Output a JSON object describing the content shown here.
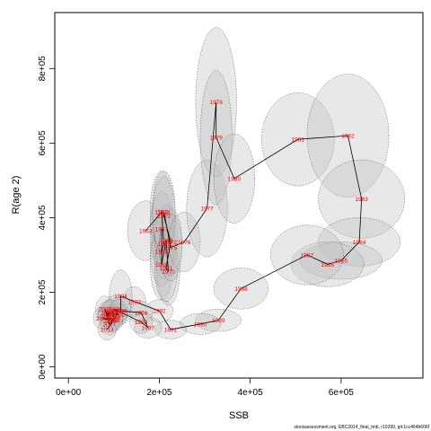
{
  "chart_data": {
    "type": "line",
    "title": "",
    "xlabel": "SSB",
    "ylabel": "R(age 2)",
    "xlim": [
      -30000,
      780000
    ],
    "ylim": [
      -30000,
      950000
    ],
    "x_ticks": [
      0,
      200000,
      400000,
      600000
    ],
    "x_tick_labels": [
      "0e+00",
      "2e+05",
      "4e+05",
      "6e+05"
    ],
    "y_ticks": [
      0,
      200000,
      400000,
      600000,
      800000
    ],
    "y_tick_labels": [
      "0e+00",
      "2e+05",
      "4e+05",
      "6e+05",
      "8e+05"
    ],
    "grid": false,
    "footer": "stockassessment.org, EBC2014_final_tmb, r10299, git:1cc464b606f",
    "points": [
      {
        "year": "1963",
        "x": 170000,
        "y": 365000,
        "ex": 40000,
        "ey": 80000
      },
      {
        "year": "1964",
        "x": 205000,
        "y": 415000,
        "ex": 25000,
        "ey": 110000
      },
      {
        "year": "1965",
        "x": 210000,
        "y": 330000,
        "ex": 25000,
        "ey": 95000
      },
      {
        "year": "1966",
        "x": 205000,
        "y": 310000,
        "ex": 25000,
        "ey": 95000
      },
      {
        "year": "1967",
        "x": 205000,
        "y": 370000,
        "ex": 25000,
        "ey": 100000
      },
      {
        "year": "1968",
        "x": 205000,
        "y": 275000,
        "ex": 25000,
        "ey": 95000
      },
      {
        "year": "1969",
        "x": 215000,
        "y": 340000,
        "ex": 25000,
        "ey": 95000
      },
      {
        "year": "1970",
        "x": 220000,
        "y": 255000,
        "ex": 25000,
        "ey": 90000
      },
      {
        "year": "1971",
        "x": 215000,
        "y": 265000,
        "ex": 25000,
        "ey": 90000
      },
      {
        "year": "1972",
        "x": 225000,
        "y": 335000,
        "ex": 25000,
        "ey": 90000
      },
      {
        "year": "1973",
        "x": 210000,
        "y": 405000,
        "ex": 25000,
        "ey": 105000
      },
      {
        "year": "1974",
        "x": 210000,
        "y": 415000,
        "ex": 25000,
        "ey": 110000
      },
      {
        "year": "1975",
        "x": 225000,
        "y": 320000,
        "ex": 25000,
        "ey": 90000
      },
      {
        "year": "1976",
        "x": 255000,
        "y": 335000,
        "ex": 35000,
        "ey": 80000
      },
      {
        "year": "1977",
        "x": 305000,
        "y": 425000,
        "ex": 45000,
        "ey": 130000
      },
      {
        "year": "1978",
        "x": 325000,
        "y": 710000,
        "ex": 45000,
        "ey": 200000
      },
      {
        "year": "1979",
        "x": 325000,
        "y": 615000,
        "ex": 35000,
        "ey": 180000
      },
      {
        "year": "1980",
        "x": 365000,
        "y": 505000,
        "ex": 45000,
        "ey": 120000
      },
      {
        "year": "1981",
        "x": 505000,
        "y": 610000,
        "ex": 80000,
        "ey": 125000
      },
      {
        "year": "1982",
        "x": 615000,
        "y": 620000,
        "ex": 90000,
        "ey": 165000
      },
      {
        "year": "1983",
        "x": 645000,
        "y": 450000,
        "ex": 95000,
        "ey": 105000
      },
      {
        "year": "1984",
        "x": 640000,
        "y": 335000,
        "ex": 90000,
        "ey": 65000
      },
      {
        "year": "1985",
        "x": 600000,
        "y": 285000,
        "ex": 90000,
        "ey": 50000
      },
      {
        "year": "1986",
        "x": 570000,
        "y": 275000,
        "ex": 80000,
        "ey": 60000
      },
      {
        "year": "1987",
        "x": 525000,
        "y": 300000,
        "ex": 80000,
        "ey": 80000
      },
      {
        "year": "1988",
        "x": 380000,
        "y": 210000,
        "ex": 60000,
        "ey": 55000
      },
      {
        "year": "1989",
        "x": 330000,
        "y": 125000,
        "ex": 50000,
        "ey": 30000
      },
      {
        "year": "1990",
        "x": 290000,
        "y": 115000,
        "ex": 45000,
        "ey": 28000
      },
      {
        "year": "1991",
        "x": 225000,
        "y": 100000,
        "ex": 35000,
        "ey": 25000
      },
      {
        "year": "1992",
        "x": 200000,
        "y": 150000,
        "ex": 30000,
        "ey": 30000
      },
      {
        "year": "1993",
        "x": 145000,
        "y": 175000,
        "ex": 25000,
        "ey": 40000
      },
      {
        "year": "1994",
        "x": 115000,
        "y": 190000,
        "ex": 25000,
        "ey": 70000
      },
      {
        "year": "1995",
        "x": 115000,
        "y": 150000,
        "ex": 25000,
        "ey": 35000
      },
      {
        "year": "1996",
        "x": 160000,
        "y": 145000,
        "ex": 25000,
        "ey": 30000
      },
      {
        "year": "1997",
        "x": 175000,
        "y": 105000,
        "ex": 30000,
        "ey": 28000
      },
      {
        "year": "1998",
        "x": 160000,
        "y": 120000,
        "ex": 25000,
        "ey": 30000
      },
      {
        "year": "1999",
        "x": 100000,
        "y": 155000,
        "ex": 20000,
        "ey": 35000
      },
      {
        "year": "2000",
        "x": 110000,
        "y": 140000,
        "ex": 20000,
        "ey": 30000
      },
      {
        "year": "2001",
        "x": 90000,
        "y": 145000,
        "ex": 20000,
        "ey": 35000
      },
      {
        "year": "2002",
        "x": 85000,
        "y": 135000,
        "ex": 20000,
        "ey": 30000
      },
      {
        "year": "2003",
        "x": 80000,
        "y": 155000,
        "ex": 20000,
        "ey": 35000
      },
      {
        "year": "2004",
        "x": 95000,
        "y": 125000,
        "ex": 20000,
        "ey": 30000
      },
      {
        "year": "2005",
        "x": 75000,
        "y": 130000,
        "ex": 20000,
        "ey": 30000
      },
      {
        "year": "2006",
        "x": 100000,
        "y": 130000,
        "ex": 20000,
        "ey": 30000
      },
      {
        "year": "2007",
        "x": 90000,
        "y": 115000,
        "ex": 20000,
        "ey": 30000
      },
      {
        "year": "2008",
        "x": 85000,
        "y": 145000,
        "ex": 20000,
        "ey": 30000
      },
      {
        "year": "2009",
        "x": 100000,
        "y": 135000,
        "ex": 20000,
        "ey": 30000
      },
      {
        "year": "2010",
        "x": 95000,
        "y": 150000,
        "ex": 20000,
        "ey": 30000
      },
      {
        "year": "2011",
        "x": 110000,
        "y": 150000,
        "ex": 20000,
        "ey": 30000
      },
      {
        "year": "2012",
        "x": 100000,
        "y": 125000,
        "ex": 20000,
        "ey": 30000
      },
      {
        "year": "2013",
        "x": 85000,
        "y": 100000,
        "ex": 20000,
        "ey": 28000
      }
    ],
    "colors": {
      "ellipse_fill": "#bebebe",
      "ellipse_stroke": "#555555",
      "path_line": "#000000",
      "year_label": "#ff0000"
    }
  }
}
